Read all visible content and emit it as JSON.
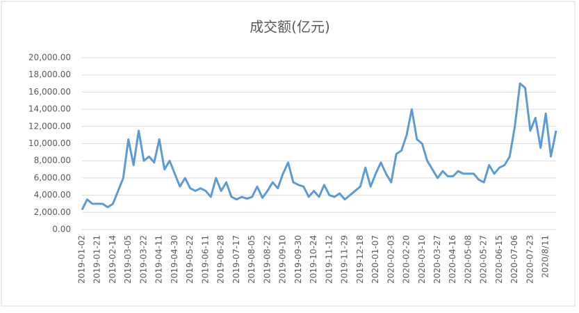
{
  "chart_data": {
    "type": "line",
    "title": "成交额(亿元)",
    "categories": [
      "2019-01-02",
      null,
      null,
      "2019-01-21",
      null,
      null,
      "2019-02-14",
      null,
      null,
      "2019-03-05",
      null,
      null,
      "2019-03-22",
      null,
      null,
      "2019-04-11",
      null,
      null,
      "2019-04-30",
      null,
      null,
      "2019-05-22",
      null,
      null,
      "2019-06-11",
      null,
      null,
      "2019-06-28",
      null,
      null,
      "2019-07-17",
      null,
      null,
      "2019-08-05",
      null,
      null,
      "2019-08-22",
      null,
      null,
      "2019-09-10",
      null,
      null,
      "2019-09-30",
      null,
      null,
      "2019-10-24",
      null,
      null,
      "2019-11-12",
      null,
      null,
      "2019-11-29",
      null,
      null,
      "2019-12-18",
      null,
      null,
      "2020-01-07",
      null,
      null,
      "2020-02-03",
      null,
      null,
      "2020-02-20",
      null,
      null,
      "2020-03-10",
      null,
      null,
      "2020-03-27",
      null,
      null,
      "2020-04-16",
      null,
      null,
      "2020-05-08",
      null,
      null,
      "2020-05-27",
      null,
      null,
      "2020-06-15",
      null,
      null,
      "2020-07-06",
      null,
      null,
      "2020-07-23",
      null,
      null,
      "2020/8/11",
      null,
      null
    ],
    "series": [
      {
        "color": "#5b9bd5",
        "values": [
          2300,
          3500,
          3000,
          3000,
          3000,
          2600,
          3000,
          4500,
          6000,
          10500,
          7500,
          11500,
          8000,
          8500,
          7800,
          10500,
          7000,
          8000,
          6500,
          5000,
          6000,
          4800,
          4500,
          4800,
          4500,
          3800,
          6000,
          4500,
          5500,
          3800,
          3500,
          3800,
          3600,
          3800,
          5000,
          3700,
          4500,
          5500,
          4800,
          6500,
          7800,
          5500,
          5200,
          5000,
          3800,
          4500,
          3800,
          5200,
          4000,
          3800,
          4200,
          3500,
          4000,
          4500,
          5000,
          7200,
          5000,
          6500,
          7800,
          6500,
          5500,
          8800,
          9200,
          11000,
          14000,
          10500,
          10000,
          8000,
          7000,
          6000,
          6800,
          6200,
          6200,
          6800,
          6500,
          6500,
          6500,
          5800,
          5500,
          7500,
          6500,
          7200,
          7500,
          8500,
          12000,
          17000,
          16500,
          11500,
          13000,
          9500,
          13500,
          8500,
          11500
        ]
      }
    ],
    "ylim": [
      0,
      20000
    ],
    "yticks": [
      {
        "value": 0,
        "label": "0.00"
      },
      {
        "value": 2000,
        "label": "2,000.00"
      },
      {
        "value": 4000,
        "label": "4,000.00"
      },
      {
        "value": 6000,
        "label": "6,000.00"
      },
      {
        "value": 8000,
        "label": "8,000.00"
      },
      {
        "value": 10000,
        "label": "10,000.00"
      },
      {
        "value": 12000,
        "label": "12,000.00"
      },
      {
        "value": 14000,
        "label": "14,000.00"
      },
      {
        "value": 16000,
        "label": "16,000.00"
      },
      {
        "value": 18000,
        "label": "18,000.00"
      },
      {
        "value": 20000,
        "label": "20,000.00"
      }
    ],
    "grid": true
  }
}
